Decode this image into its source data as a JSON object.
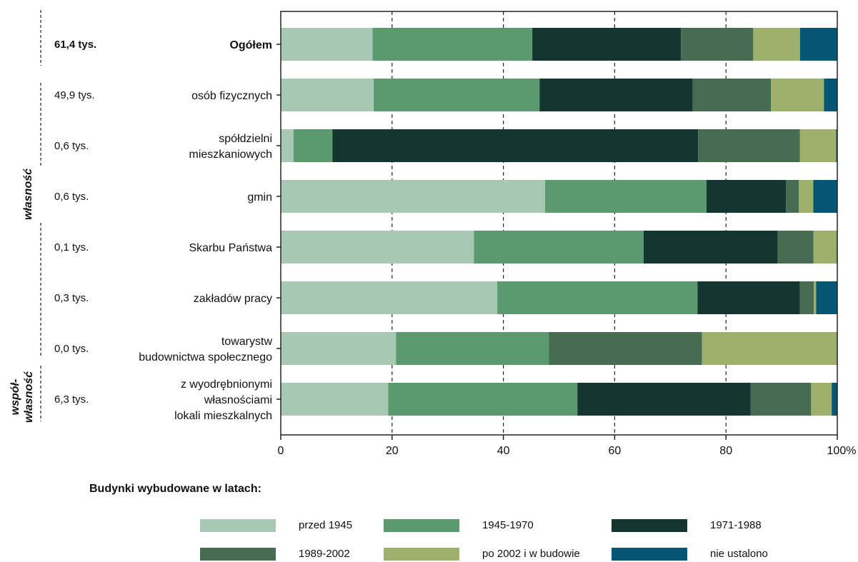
{
  "chart_data": {
    "type": "bar",
    "orientation": "horizontal",
    "stacked": true,
    "categories": [
      [
        "Ogółem"
      ],
      [
        "osób fizycznych"
      ],
      [
        "spółdzielni",
        "mieszkaniowych"
      ],
      [
        "gmin"
      ],
      [
        "Skarbu Państwa"
      ],
      [
        "zakładów pracy"
      ],
      [
        "towarystw",
        "budownictwa społecznego"
      ],
      [
        "z wyodrębnionymi",
        "własnościami",
        "lokali mieszkalnych"
      ]
    ],
    "counts": [
      "61,4 tys.",
      "49,9 tys.",
      "0,6 tys.",
      "0,6 tys.",
      "0,1 tys.",
      "0,3 tys.",
      "0,0 tys.",
      "6,3 tys."
    ],
    "groups": [
      {
        "label": [
          "własność"
        ],
        "from": 1,
        "to": 6
      },
      {
        "label": [
          "współ-",
          "własność"
        ],
        "from": 7,
        "to": 7
      }
    ],
    "legend_title": "Budynki wybudowane w latach:",
    "series": [
      {
        "name": "przed 1945",
        "color": "#a9c8b4",
        "values": [
          16.5,
          16.7,
          2.3,
          47.5,
          34.7,
          38.9,
          20.7,
          19.3
        ]
      },
      {
        "name": "1945-1970",
        "color": "#5a9a6e",
        "values": [
          28.7,
          29.8,
          7.0,
          29.0,
          30.5,
          36.0,
          27.5,
          34.0
        ]
      },
      {
        "name": "1971-1988",
        "color": "#143630",
        "values": [
          26.7,
          27.5,
          65.7,
          14.3,
          24.1,
          18.4,
          0.0,
          31.1
        ]
      },
      {
        "name": "1989-2002",
        "color": "#466c51",
        "values": [
          13.0,
          14.1,
          18.3,
          2.3,
          6.4,
          2.5,
          27.5,
          10.9
        ]
      },
      {
        "name": "po 2002 i w budowie",
        "color": "#9db06c",
        "values": [
          8.4,
          9.5,
          6.5,
          2.6,
          4.2,
          0.4,
          24.3,
          3.7
        ]
      },
      {
        "name": "nie ustalono",
        "color": "#045674",
        "values": [
          6.7,
          2.4,
          0.2,
          4.3,
          0.1,
          3.8,
          0.0,
          1.0
        ]
      }
    ],
    "x_ticks": [
      "0",
      "20",
      "40",
      "60",
      "80",
      "100%"
    ],
    "xlim": [
      0,
      100
    ],
    "grid": "vertical-dashed",
    "legend_position": "bottom"
  }
}
